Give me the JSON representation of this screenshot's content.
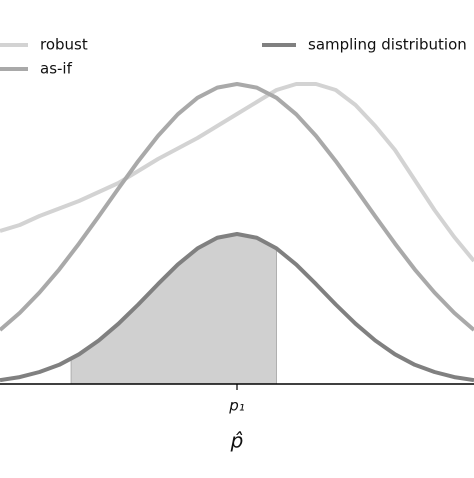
{
  "chart_data": {
    "type": "line",
    "xlabel": "p̂",
    "x": [
      -3,
      -2.75,
      -2.5,
      -2.25,
      -2,
      -1.75,
      -1.5,
      -1.25,
      -1,
      -0.75,
      -0.5,
      -0.25,
      0,
      0.25,
      0.5,
      0.75,
      1,
      1.25,
      1.5,
      1.75,
      2,
      2.25,
      2.5,
      2.75,
      3
    ],
    "series": [
      {
        "name": "robust",
        "color": "#d3d3d3",
        "values": [
          0.51,
          0.53,
          0.56,
          0.585,
          0.61,
          0.64,
          0.67,
          0.71,
          0.75,
          0.785,
          0.82,
          0.86,
          0.9,
          0.94,
          0.98,
          1.0,
          1.0,
          0.98,
          0.93,
          0.86,
          0.78,
          0.68,
          0.58,
          0.49,
          0.41
        ]
      },
      {
        "name": "as-if",
        "color": "#a9a9a9",
        "values": [
          0.18,
          0.237,
          0.305,
          0.382,
          0.468,
          0.559,
          0.652,
          0.743,
          0.827,
          0.899,
          0.954,
          0.988,
          1.0,
          0.988,
          0.954,
          0.899,
          0.827,
          0.743,
          0.652,
          0.559,
          0.468,
          0.382,
          0.305,
          0.237,
          0.18
        ]
      },
      {
        "name": "sampling distribution",
        "color": "#808080",
        "values": [
          0.013,
          0.023,
          0.04,
          0.064,
          0.099,
          0.145,
          0.201,
          0.265,
          0.333,
          0.398,
          0.452,
          0.4875,
          0.5,
          0.4875,
          0.452,
          0.398,
          0.333,
          0.265,
          0.201,
          0.145,
          0.099,
          0.064,
          0.04,
          0.023,
          0.013
        ]
      }
    ],
    "shaded_interval": [
      -2.1,
      0.5
    ],
    "shade_color": "#d0d0d0",
    "xlim": [
      -3,
      3
    ],
    "ylim": [
      0,
      1.28
    ],
    "xticks": [
      {
        "value": 0,
        "label": "p₁"
      }
    ]
  }
}
